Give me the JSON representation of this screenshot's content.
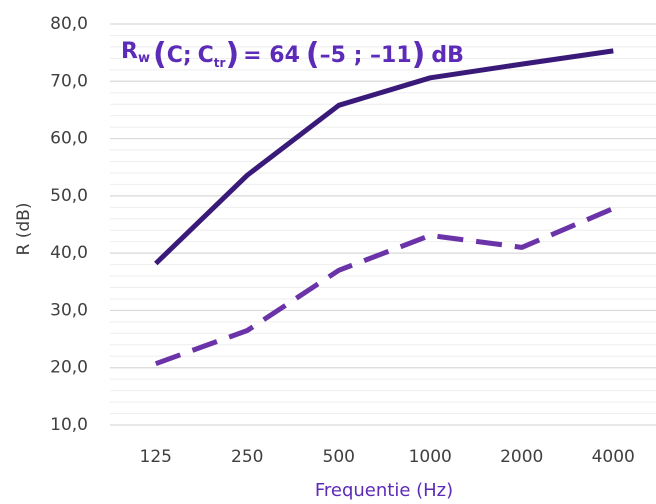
{
  "chart_data": {
    "type": "line",
    "annotation": {
      "R": "R",
      "w": "w",
      "open": "(",
      "C": "C;",
      "C2": "C",
      "tr": "tr",
      "close": ")",
      "rest": "= 64",
      "open2": "(",
      "mid": "–5 ; –11",
      "close2": ")",
      "unit": "dB"
    },
    "xlabel": "Frequentie (Hz)",
    "ylabel": "R (dB)",
    "categories": [
      "125",
      "250",
      "500",
      "1000",
      "2000",
      "4000"
    ],
    "ylim": [
      10,
      80
    ],
    "y_ticks": [
      "10,0",
      "20,0",
      "30,0",
      "40,0",
      "50,0",
      "60,0",
      "70,0",
      "80,0"
    ],
    "grid": "horizontal",
    "colors": {
      "annotation": "#5c2bb8",
      "axis_title": "#5c2bb8",
      "grid": "#d9d9d9"
    },
    "series": [
      {
        "style": "solid",
        "color": "#3a1a78",
        "values": [
          38.2,
          53.6,
          65.8,
          70.6,
          73.0,
          75.3
        ]
      },
      {
        "style": "dashed",
        "color": "#6b33a8",
        "values": [
          20.7,
          26.5,
          37.0,
          43.1,
          41.0,
          47.8
        ]
      }
    ]
  }
}
